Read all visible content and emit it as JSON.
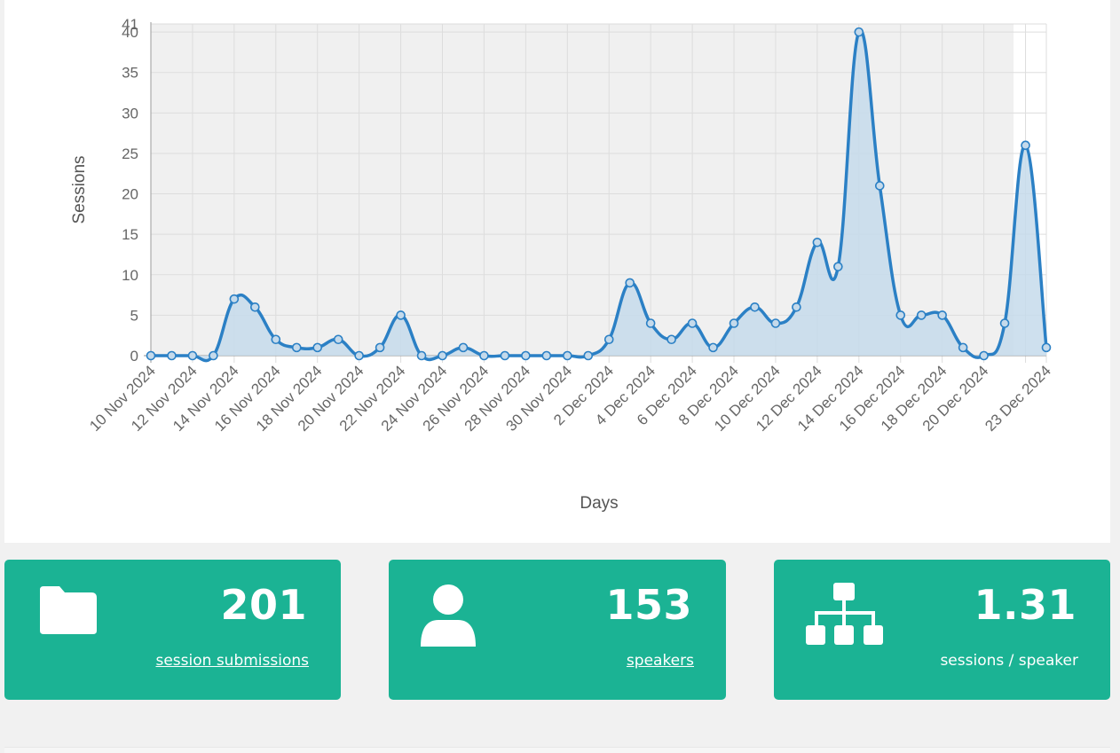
{
  "chart_data": {
    "type": "area",
    "xlabel": "Days",
    "ylabel": "Sessions",
    "ylim": [
      0,
      41
    ],
    "y_ticks": [
      0,
      5,
      10,
      15,
      20,
      25,
      30,
      35,
      40,
      41
    ],
    "x_tick_labels": [
      "10 Nov 2024",
      "12 Nov 2024",
      "14 Nov 2024",
      "16 Nov 2024",
      "18 Nov 2024",
      "20 Nov 2024",
      "22 Nov 2024",
      "24 Nov 2024",
      "26 Nov 2024",
      "28 Nov 2024",
      "30 Nov 2024",
      "2 Dec 2024",
      "4 Dec 2024",
      "6 Dec 2024",
      "8 Dec 2024",
      "10 Dec 2024",
      "12 Dec 2024",
      "14 Dec 2024",
      "16 Dec 2024",
      "18 Dec 2024",
      "20 Dec 2024",
      "23 Dec 2024"
    ],
    "grid": true,
    "series": [
      {
        "x": [
          "2024-11-10",
          "2024-11-11",
          "2024-11-12",
          "2024-11-13",
          "2024-11-14",
          "2024-11-15",
          "2024-11-16",
          "2024-11-17",
          "2024-11-18",
          "2024-11-19",
          "2024-11-20",
          "2024-11-21",
          "2024-11-22",
          "2024-11-23",
          "2024-11-24",
          "2024-11-25",
          "2024-11-26",
          "2024-11-27",
          "2024-11-28",
          "2024-11-29",
          "2024-11-30",
          "2024-12-01",
          "2024-12-02",
          "2024-12-03",
          "2024-12-04",
          "2024-12-05",
          "2024-12-06",
          "2024-12-07",
          "2024-12-08",
          "2024-12-09",
          "2024-12-10",
          "2024-12-11",
          "2024-12-12",
          "2024-12-13",
          "2024-12-14",
          "2024-12-15",
          "2024-12-16",
          "2024-12-17",
          "2024-12-18",
          "2024-12-19",
          "2024-12-20",
          "2024-12-21",
          "2024-12-22",
          "2024-12-23"
        ],
        "values": [
          0,
          0,
          0,
          0,
          7,
          6,
          2,
          1,
          1,
          2,
          0,
          1,
          5,
          0,
          0,
          1,
          0,
          0,
          0,
          0,
          0,
          0,
          2,
          9,
          4,
          2,
          4,
          1,
          4,
          6,
          4,
          6,
          14,
          11,
          40,
          21,
          5,
          5,
          5,
          1,
          0,
          4,
          26,
          1
        ],
        "color": "#2b80c5",
        "fill": "#c5daeb"
      }
    ],
    "shaded_background": "#f0f0f0"
  },
  "stats": [
    {
      "value": "201",
      "label": "session submissions",
      "icon": "folder-icon"
    },
    {
      "value": "153",
      "label": "speakers",
      "icon": "user-icon"
    },
    {
      "value": "1.31",
      "label": "sessions / speaker",
      "icon": "sitemap-icon"
    }
  ]
}
